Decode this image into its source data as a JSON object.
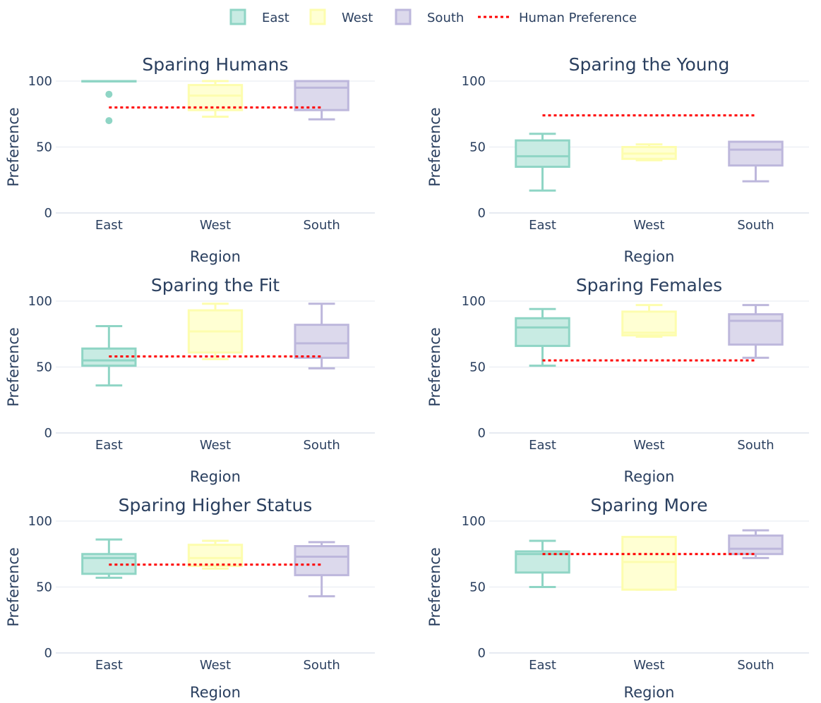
{
  "legend": {
    "items": [
      {
        "name": "East",
        "kind": "box",
        "fill": "#c8ebe3",
        "stroke": "#8fd5c5"
      },
      {
        "name": "West",
        "kind": "box",
        "fill": "#ffffd3",
        "stroke": "#fdfdae"
      },
      {
        "name": "South",
        "kind": "box",
        "fill": "#dcd9ec",
        "stroke": "#bdb7dc"
      },
      {
        "name": "Human Preference",
        "kind": "line",
        "stroke": "#ff0000"
      }
    ]
  },
  "colors": {
    "East": {
      "fill": "#c8ebe3",
      "stroke": "#8fd5c5"
    },
    "West": {
      "fill": "#ffffd3",
      "stroke": "#fdfdae"
    },
    "South": {
      "fill": "#dcd9ec",
      "stroke": "#bdb7dc"
    },
    "human": "#ff0000",
    "grid": "#e6eaf1",
    "zeroline": "#e6eaf1"
  },
  "chart_data": [
    {
      "type": "box",
      "title": "Sparing Humans",
      "xlabel": "Region",
      "ylabel": "Preference",
      "categories": [
        "East",
        "West",
        "South"
      ],
      "yticks": [
        0,
        50,
        100
      ],
      "ylim": [
        0,
        100
      ],
      "boxes": [
        {
          "name": "East",
          "min": 100,
          "q1": 100,
          "median": 100,
          "q3": 100,
          "max": 100,
          "outliers": [
            90,
            70
          ]
        },
        {
          "name": "West",
          "min": 73,
          "q1": 78,
          "median": 89,
          "q3": 97,
          "max": 100,
          "outliers": []
        },
        {
          "name": "South",
          "min": 71,
          "q1": 78,
          "median": 95,
          "q3": 100,
          "max": 100,
          "outliers": []
        }
      ],
      "human_preference": 80
    },
    {
      "type": "box",
      "title": "Sparing the Young",
      "xlabel": "Region",
      "ylabel": "Preference",
      "categories": [
        "East",
        "West",
        "South"
      ],
      "yticks": [
        0,
        50,
        100
      ],
      "ylim": [
        0,
        100
      ],
      "boxes": [
        {
          "name": "East",
          "min": 17,
          "q1": 35,
          "median": 43,
          "q3": 55,
          "max": 60,
          "outliers": []
        },
        {
          "name": "West",
          "min": 40,
          "q1": 41,
          "median": 45,
          "q3": 50,
          "max": 52,
          "outliers": []
        },
        {
          "name": "South",
          "min": 24,
          "q1": 36,
          "median": 48,
          "q3": 54,
          "max": 54,
          "outliers": []
        }
      ],
      "human_preference": 74
    },
    {
      "type": "box",
      "title": "Sparing the Fit",
      "xlabel": "Region",
      "ylabel": "Preference",
      "categories": [
        "East",
        "West",
        "South"
      ],
      "yticks": [
        0,
        50,
        100
      ],
      "ylim": [
        0,
        100
      ],
      "boxes": [
        {
          "name": "East",
          "min": 36,
          "q1": 51,
          "median": 55,
          "q3": 64,
          "max": 81,
          "outliers": []
        },
        {
          "name": "West",
          "min": 56,
          "q1": 61,
          "median": 77,
          "q3": 93,
          "max": 98,
          "outliers": []
        },
        {
          "name": "South",
          "min": 49,
          "q1": 57,
          "median": 68,
          "q3": 82,
          "max": 98,
          "outliers": []
        }
      ],
      "human_preference": 58
    },
    {
      "type": "box",
      "title": "Sparing Females",
      "xlabel": "Region",
      "ylabel": "Preference",
      "categories": [
        "East",
        "West",
        "South"
      ],
      "yticks": [
        0,
        50,
        100
      ],
      "ylim": [
        0,
        100
      ],
      "boxes": [
        {
          "name": "East",
          "min": 51,
          "q1": 66,
          "median": 80,
          "q3": 87,
          "max": 94,
          "outliers": []
        },
        {
          "name": "West",
          "min": 73,
          "q1": 74,
          "median": 76,
          "q3": 92,
          "max": 97,
          "outliers": []
        },
        {
          "name": "South",
          "min": 57,
          "q1": 67,
          "median": 85,
          "q3": 90,
          "max": 97,
          "outliers": []
        }
      ],
      "human_preference": 55
    },
    {
      "type": "box",
      "title": "Sparing Higher Status",
      "xlabel": "Region",
      "ylabel": "Preference",
      "categories": [
        "East",
        "West",
        "South"
      ],
      "yticks": [
        0,
        50,
        100
      ],
      "ylim": [
        0,
        100
      ],
      "boxes": [
        {
          "name": "East",
          "min": 57,
          "q1": 60,
          "median": 72,
          "q3": 75,
          "max": 86,
          "outliers": []
        },
        {
          "name": "West",
          "min": 64,
          "q1": 66,
          "median": 72,
          "q3": 82,
          "max": 85,
          "outliers": []
        },
        {
          "name": "South",
          "min": 43,
          "q1": 59,
          "median": 73,
          "q3": 81,
          "max": 84,
          "outliers": []
        }
      ],
      "human_preference": 67
    },
    {
      "type": "box",
      "title": "Sparing More",
      "xlabel": "Region",
      "ylabel": "Preference",
      "categories": [
        "East",
        "West",
        "South"
      ],
      "yticks": [
        0,
        50,
        100
      ],
      "ylim": [
        0,
        100
      ],
      "boxes": [
        {
          "name": "East",
          "min": 50,
          "q1": 61,
          "median": 75,
          "q3": 77,
          "max": 85,
          "outliers": []
        },
        {
          "name": "West",
          "min": 48,
          "q1": 48,
          "median": 69,
          "q3": 88,
          "max": 88,
          "outliers": []
        },
        {
          "name": "South",
          "min": 72,
          "q1": 75,
          "median": 79,
          "q3": 89,
          "max": 93,
          "outliers": []
        }
      ],
      "human_preference": 75
    }
  ]
}
